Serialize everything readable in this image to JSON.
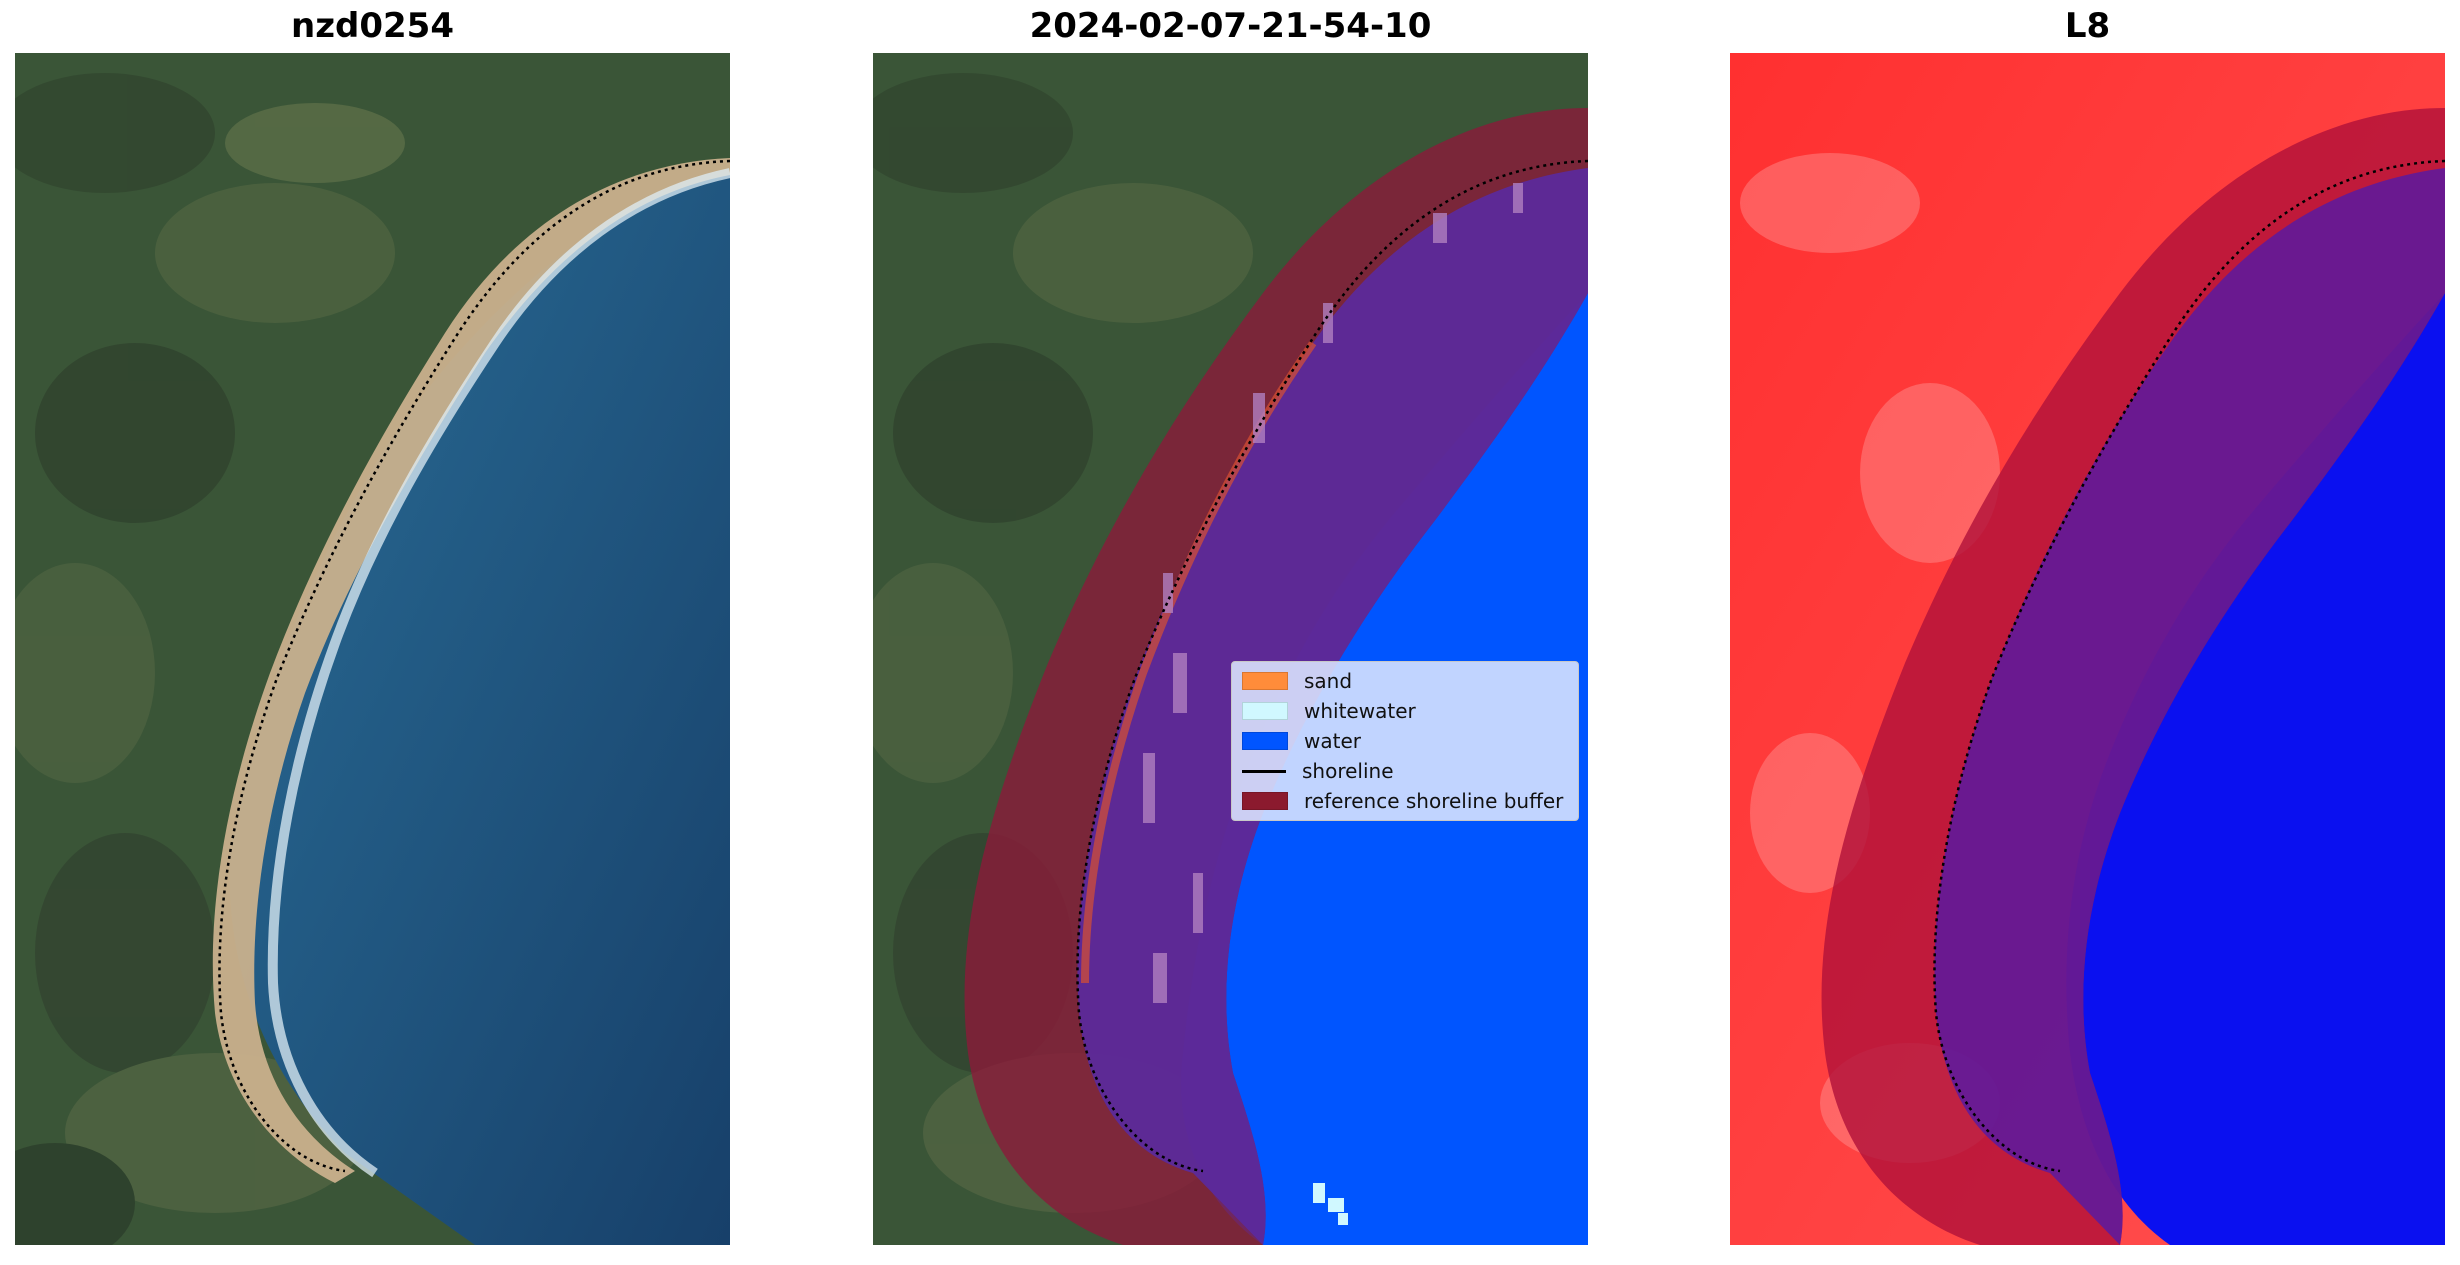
{
  "panels": [
    {
      "title": "nzd0254"
    },
    {
      "title": "2024-02-07-21-54-10"
    },
    {
      "title": "L8"
    }
  ],
  "legend": {
    "items": [
      {
        "label": "sand",
        "color": "#ff8c3a",
        "type": "patch"
      },
      {
        "label": "whitewater",
        "color": "#d0f8ff",
        "type": "patch"
      },
      {
        "label": "water",
        "color": "#0055ff",
        "type": "patch"
      },
      {
        "label": "shoreline",
        "color": "#000000",
        "type": "line"
      },
      {
        "label": "reference shoreline buffer",
        "color": "#8b1a2e",
        "type": "patch"
      }
    ]
  },
  "colors": {
    "land": "#3f5a3a",
    "sea": "#1f5a86",
    "beach": "#cdb58e",
    "buffer": "#8b1a3a",
    "water_class": "#0055ff",
    "index_land": "#ff2020",
    "index_water": "#0a10f0"
  }
}
